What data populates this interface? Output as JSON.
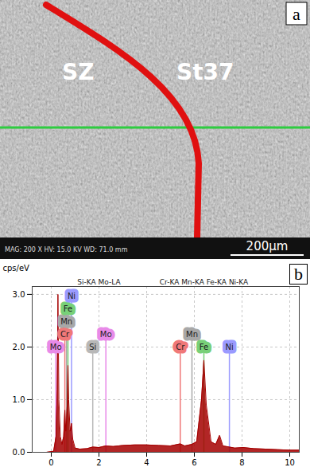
{
  "micrograph": {
    "panel": "a",
    "labels": [
      "SZ",
      "St37"
    ],
    "scale_bar": "200µm",
    "info": "MAG: 200 X   HV: 15.0 KV   WD: 71.0 mm"
  },
  "chart_data": {
    "type": "area",
    "panel": "b",
    "y_label": "cps/eV",
    "color": "#a50000",
    "x": [
      -0.2,
      0.1,
      0.2,
      0.25,
      0.28,
      0.32,
      0.38,
      0.45,
      0.52,
      0.57,
      0.61,
      0.64,
      0.67,
      0.7,
      0.73,
      0.79,
      0.85,
      0.9,
      1.0,
      1.2,
      1.5,
      1.74,
      2.0,
      2.29,
      2.6,
      3.0,
      3.5,
      4.0,
      4.5,
      5.0,
      5.41,
      5.6,
      5.9,
      6.1,
      6.3,
      6.4,
      6.5,
      6.7,
      6.9,
      7.06,
      7.2,
      7.47,
      7.7,
      8.05,
      8.5,
      9.0,
      9.5,
      10.0,
      10.4
    ],
    "values": [
      0.0,
      0.02,
      0.3,
      1.2,
      3.0,
      1.0,
      0.3,
      0.15,
      0.3,
      0.8,
      0.4,
      0.6,
      0.9,
      1.65,
      1.0,
      0.4,
      0.55,
      0.25,
      0.08,
      0.06,
      0.07,
      0.1,
      0.09,
      0.12,
      0.11,
      0.13,
      0.14,
      0.14,
      0.13,
      0.12,
      0.16,
      0.12,
      0.15,
      0.2,
      1.0,
      1.75,
      0.9,
      0.2,
      0.15,
      0.32,
      0.12,
      0.1,
      0.08,
      0.09,
      0.07,
      0.06,
      0.05,
      0.04,
      0.04
    ],
    "xlim": [
      -0.8,
      10.4
    ],
    "xticks": [
      0,
      2,
      4,
      6,
      8,
      10
    ],
    "ylim": [
      0,
      3.15
    ],
    "yticks": [
      {
        "value": 0,
        "label": "0.0"
      },
      {
        "value": 1,
        "label": "1.0"
      },
      {
        "value": 2,
        "label": "2.0"
      },
      {
        "value": 3,
        "label": "3.0"
      }
    ],
    "grid": true,
    "markers": [
      {
        "label": "Mo",
        "x": 0.19,
        "color": "#e88ae8"
      },
      {
        "label": "Cr",
        "x": 0.57,
        "color": "#f07878"
      },
      {
        "label": "Mn",
        "x": 0.64,
        "color": "#a8a8a8"
      },
      {
        "label": "Fe",
        "x": 0.7,
        "color": "#78d078"
      },
      {
        "label": "Ni",
        "x": 0.85,
        "color": "#9a9aff"
      },
      {
        "label": "Si",
        "x": 1.74,
        "color": "#b8b8b8"
      },
      {
        "label": "Mo",
        "x": 2.29,
        "color": "#e88ae8"
      },
      {
        "label": "Cr",
        "x": 5.41,
        "color": "#f07878"
      },
      {
        "label": "Mn",
        "x": 5.9,
        "color": "#a8a8a8"
      },
      {
        "label": "Fe",
        "x": 6.4,
        "color": "#78d078"
      },
      {
        "label": "Ni",
        "x": 7.47,
        "color": "#9a9aff"
      }
    ],
    "annotations": [
      {
        "text": "Si-KA Mo-LA",
        "x": 2.0
      },
      {
        "text": "Cr-KA Mn-KA Fe-KA Ni-KA",
        "x": 6.4
      }
    ]
  }
}
